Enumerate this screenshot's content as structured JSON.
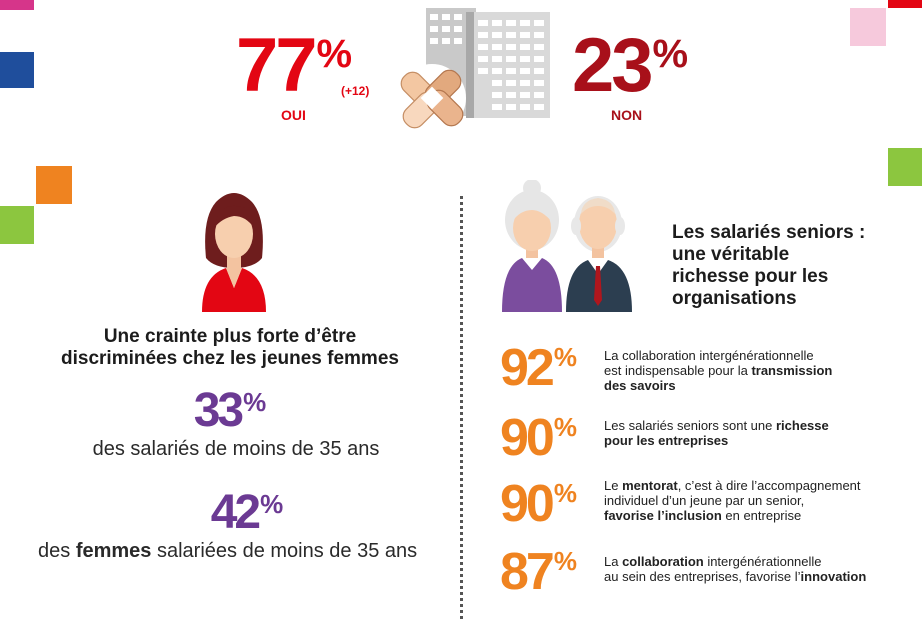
{
  "colors": {
    "red": "#e30613",
    "dark_red": "#a8101a",
    "purple": "#6b3a93",
    "orange": "#ef8320",
    "green": "#8cc63f",
    "blue": "#1f4e9c",
    "magenta": "#d6358a",
    "pink": "#f6c9dc"
  },
  "top": {
    "yes_value": "77",
    "yes_pct": "%",
    "yes_delta": "(+12)",
    "yes_label": "OUI",
    "no_value": "23",
    "no_pct": "%",
    "no_label": "NON"
  },
  "left": {
    "heading_line1": "Une crainte plus forte d’être",
    "heading_line2": "discriminées chez les jeunes femmes",
    "stat1_value": "33",
    "stat1_pct": "%",
    "stat1_label": "des salariés de moins de 35 ans",
    "stat2_value": "42",
    "stat2_pct": "%",
    "stat2_pre": "des ",
    "stat2_bold": "femmes",
    "stat2_post": " salariées de moins de 35 ans"
  },
  "right": {
    "heading_line1": "Les salariés seniors :",
    "heading_line2": "une véritable",
    "heading_line3": "richesse pour les",
    "heading_line4": "organisations",
    "stats": [
      {
        "value": "92",
        "pct": "%",
        "t1": "La collaboration intergénérationnelle",
        "t2": "est indispensable pour la ",
        "t2b": "transmission",
        "t3b": "des savoirs"
      },
      {
        "value": "90",
        "pct": "%",
        "t1": "Les salariés seniors sont une ",
        "t1b": "richesse",
        "t2b": "pour les entreprises"
      },
      {
        "value": "90",
        "pct": "%",
        "t1": "Le ",
        "t1b": "mentorat",
        "t1c": ", c’est à dire l’accompagnement",
        "t2": "individuel d’un jeune par un senior,",
        "t3b": "favorise l’inclusion",
        "t3": " en entreprise"
      },
      {
        "value": "87",
        "pct": "%",
        "t1": "La ",
        "t1b": "collaboration",
        "t1c": " intergénérationnelle",
        "t2": "au sein des entreprises, favorise l’",
        "t2b": "innovation"
      }
    ]
  }
}
